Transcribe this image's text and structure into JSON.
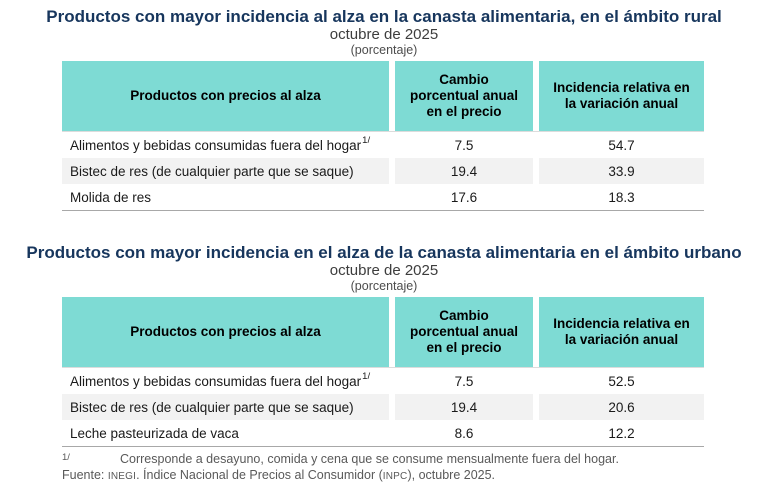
{
  "colors": {
    "title_blue": "#17365D",
    "header_teal": "#7EDBD4",
    "row_alt_gray": "#F2F2F2",
    "footer_gray": "#595959"
  },
  "tables": [
    {
      "title": "Productos con mayor incidencia al alza en la canasta alimentaria, en el ámbito rural",
      "subtitle": "octubre de 2025",
      "unit_label": "(porcentaje)",
      "columns": [
        "Productos con precios al alza",
        "Cambio porcentual anual en el precio",
        "Incidencia relativa en la variación anual"
      ],
      "rows": [
        {
          "product": "Alimentos y bebidas consumidas fuera del hogar",
          "marker": "1/",
          "annual_price_change": "7.5",
          "relative_incidence": "54.7"
        },
        {
          "product": "Bistec de res (de cualquier parte que se saque)",
          "marker": "",
          "annual_price_change": "19.4",
          "relative_incidence": "33.9"
        },
        {
          "product": "Molida de res",
          "marker": "",
          "annual_price_change": "17.6",
          "relative_incidence": "18.3"
        }
      ]
    },
    {
      "title": "Productos con mayor incidencia en el alza de la canasta alimentaria en el ámbito urbano",
      "subtitle": "octubre de 2025",
      "unit_label": "(porcentaje)",
      "columns": [
        "Productos con precios al alza",
        "Cambio porcentual anual en el precio",
        "Incidencia relativa en la variación anual"
      ],
      "rows": [
        {
          "product": "Alimentos y bebidas consumidas fuera del hogar",
          "marker": "1/",
          "annual_price_change": "7.5",
          "relative_incidence": "52.5"
        },
        {
          "product": "Bistec de res (de cualquier parte que se saque)",
          "marker": "",
          "annual_price_change": "19.4",
          "relative_incidence": "20.6"
        },
        {
          "product": "Leche pasteurizada de vaca",
          "marker": "",
          "annual_price_change": "8.6",
          "relative_incidence": "12.2"
        }
      ]
    }
  ],
  "footer": {
    "footnote_marker": "1/",
    "footnote_text": "Corresponde a desayuno, comida y cena que se consume mensualmente fuera del hogar.",
    "source_prefix": "Fuente:",
    "source_agency": "INEGI",
    "source_middle": ". Índice Nacional de Precios al Consumidor (",
    "source_acronym": "INPC",
    "source_suffix": "), octubre 2025."
  },
  "chart_data": [
    {
      "type": "table",
      "title": "Productos con mayor incidencia al alza en la canasta alimentaria, en el ámbito rural",
      "subtitle": "octubre de 2025",
      "unit": "porcentaje",
      "columns": [
        "Productos con precios al alza",
        "Cambio porcentual anual en el precio",
        "Incidencia relativa en la variación anual"
      ],
      "rows": [
        [
          "Alimentos y bebidas consumidas fuera del hogar 1/",
          7.5,
          54.7
        ],
        [
          "Bistec de res (de cualquier parte que se saque)",
          19.4,
          33.9
        ],
        [
          "Molida de res",
          17.6,
          18.3
        ]
      ]
    },
    {
      "type": "table",
      "title": "Productos con mayor incidencia en el alza de la canasta alimentaria en el ámbito urbano",
      "subtitle": "octubre de 2025",
      "unit": "porcentaje",
      "columns": [
        "Productos con precios al alza",
        "Cambio porcentual anual en el precio",
        "Incidencia relativa en la variación anual"
      ],
      "rows": [
        [
          "Alimentos y bebidas consumidas fuera del hogar 1/",
          7.5,
          52.5
        ],
        [
          "Bistec de res (de cualquier parte que se saque)",
          19.4,
          20.6
        ],
        [
          "Leche pasteurizada de vaca",
          8.6,
          12.2
        ]
      ]
    }
  ]
}
